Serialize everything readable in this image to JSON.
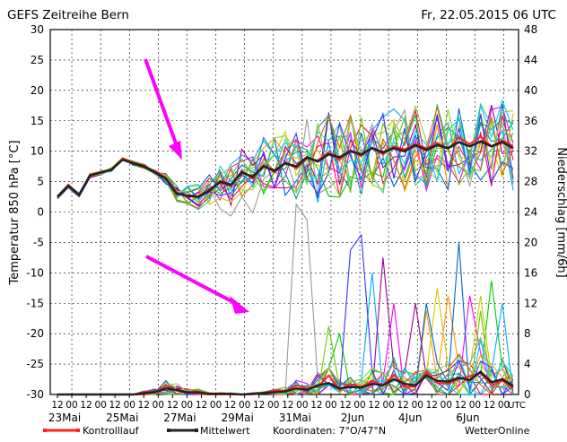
{
  "chart_data": {
    "type": "line",
    "title": "GEFS Zeitreihe Bern",
    "run_label": "Fr, 22.05.2015 06 UTC",
    "ylabel_left": "Temperatur 850 hPa [°C]",
    "ylabel_right": "Niederschlag [mm/6h]",
    "ylim_left": [
      -30,
      30
    ],
    "ylim_right": [
      0,
      48
    ],
    "yticks_left": [
      30,
      25,
      20,
      15,
      10,
      5,
      0,
      -5,
      -10,
      -15,
      -20,
      -25,
      -30
    ],
    "yticks_right": [
      48,
      44,
      40,
      36,
      32,
      28,
      24,
      20,
      16,
      12,
      8,
      4,
      0
    ],
    "hour_tick_labels": [
      "12",
      "00",
      "12",
      "00",
      "12",
      "00",
      "12",
      "00",
      "12",
      "00",
      "12",
      "00",
      "12",
      "00",
      "12",
      "00",
      "12",
      "00",
      "12",
      "00",
      "12",
      "00",
      "12",
      "00",
      "12",
      "00",
      "12",
      "00",
      "12",
      "00",
      "12",
      "00",
      "UTC"
    ],
    "date_labels": [
      "23Mai",
      "25Mai",
      "27Mai",
      "29Mai",
      "31Mai",
      "2Jun",
      "4Jun",
      "6Jun"
    ],
    "legend": {
      "control": "Kontrolllauf",
      "mean": "Mittelwert",
      "coords": "Koordinaten: 7°O/47°N",
      "brand": "WetterOnline"
    },
    "series_colors": [
      "#ff00ff",
      "#00cc00",
      "#00aaff",
      "#ff9900",
      "#990099",
      "#33cc99",
      "#cccc00",
      "#0066cc",
      "#ff0066",
      "#66cc00",
      "#009999",
      "#999999",
      "#3333ff",
      "#cc6600",
      "#00ccff",
      "#99cc33"
    ],
    "control_color": "#ff2222",
    "mean_color": "#222222",
    "temp_mean": [
      2.5,
      4.3,
      2.8,
      6,
      6.5,
      7,
      8.6,
      8,
      7.5,
      6.5,
      5.5,
      3,
      2.7,
      2.5,
      3.5,
      5,
      4.5,
      6.5,
      5.8,
      7.5,
      6.8,
      8,
      7.5,
      9,
      8.3,
      9.5,
      9,
      10,
      9.5,
      10.5,
      9.8,
      10.5,
      10,
      11,
      10.2,
      11,
      10.5,
      11.5,
      10.8,
      11.6,
      10.8,
      11.5,
      10.5
    ],
    "temp_control": [
      2.5,
      4.3,
      2.8,
      6,
      6.5,
      7,
      8.8,
      8,
      7.3,
      6.8,
      5.6,
      3.2,
      2.5,
      2.6,
      3.8,
      4.8,
      4.2,
      6.8,
      5.5,
      7.8,
      6.5,
      8.2,
      7.2,
      8.8,
      8.5,
      9.8,
      8.6,
      10.2,
      9.2,
      10.6,
      9.5,
      10.8,
      10.3,
      11.2,
      10.5,
      11.4,
      10.4,
      12.2,
      11.2,
      12.4,
      10.8,
      11.8,
      10.9
    ],
    "precip_mean": [
      0,
      0,
      0,
      0,
      0,
      0,
      0,
      0,
      0.2,
      0.3,
      0.8,
      0.6,
      0.3,
      0.3,
      0.1,
      0.1,
      0.1,
      0,
      0.1,
      0.2,
      0.3,
      0.4,
      0.8,
      0.6,
      1.2,
      1.5,
      0.8,
      1.0,
      0.9,
      1.4,
      1.2,
      2.0,
      1.4,
      1.2,
      2.5,
      1.8,
      1.7,
      2.2,
      1.9,
      3.0,
      1.6,
      2.0,
      1.1
    ],
    "precip_control": [
      0,
      0,
      0,
      0,
      0,
      0,
      0,
      0,
      0,
      0.3,
      1.2,
      0.5,
      0.2,
      0.1,
      0,
      0,
      0,
      0,
      0,
      0.2,
      0.6,
      0.4,
      1.2,
      0.8,
      1.0,
      2.5,
      0.6,
      1.4,
      1.0,
      1.8,
      1.2,
      2.6,
      1.0,
      1.0,
      3.0,
      1.5,
      1.4,
      2.0,
      2.4,
      2.8,
      1.2,
      1.8,
      0.8
    ],
    "annotations": [
      "arrow pointing to temperature drop near 27Mai",
      "arrow pointing to precipitation spread near 29Mai"
    ]
  }
}
